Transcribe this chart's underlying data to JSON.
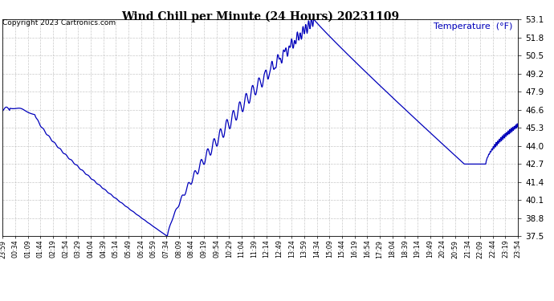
{
  "title": "Wind Chill per Minute (24 Hours) 20231109",
  "copyright": "Copyright 2023 Cartronics.com",
  "legend_label": "Temperature  (°F)",
  "line_color": "#0000bb",
  "background_color": "#ffffff",
  "grid_color": "#bbbbbb",
  "y_min": 37.5,
  "y_max": 53.1,
  "y_ticks": [
    37.5,
    38.8,
    40.1,
    41.4,
    42.7,
    44.0,
    45.3,
    46.6,
    47.9,
    49.2,
    50.5,
    51.8,
    53.1
  ],
  "x_labels": [
    "23:59",
    "00:34",
    "01:09",
    "01:44",
    "02:19",
    "02:54",
    "03:29",
    "04:04",
    "04:39",
    "05:14",
    "05:49",
    "06:24",
    "06:59",
    "07:34",
    "08:09",
    "08:44",
    "09:19",
    "09:54",
    "10:29",
    "11:04",
    "11:39",
    "12:14",
    "12:49",
    "13:24",
    "13:59",
    "14:34",
    "15:09",
    "15:44",
    "16:19",
    "16:54",
    "17:29",
    "18:04",
    "18:39",
    "19:14",
    "19:49",
    "20:24",
    "20:59",
    "21:34",
    "22:09",
    "22:44",
    "23:19",
    "23:54"
  ],
  "figwidth": 6.9,
  "figheight": 3.75,
  "dpi": 100
}
